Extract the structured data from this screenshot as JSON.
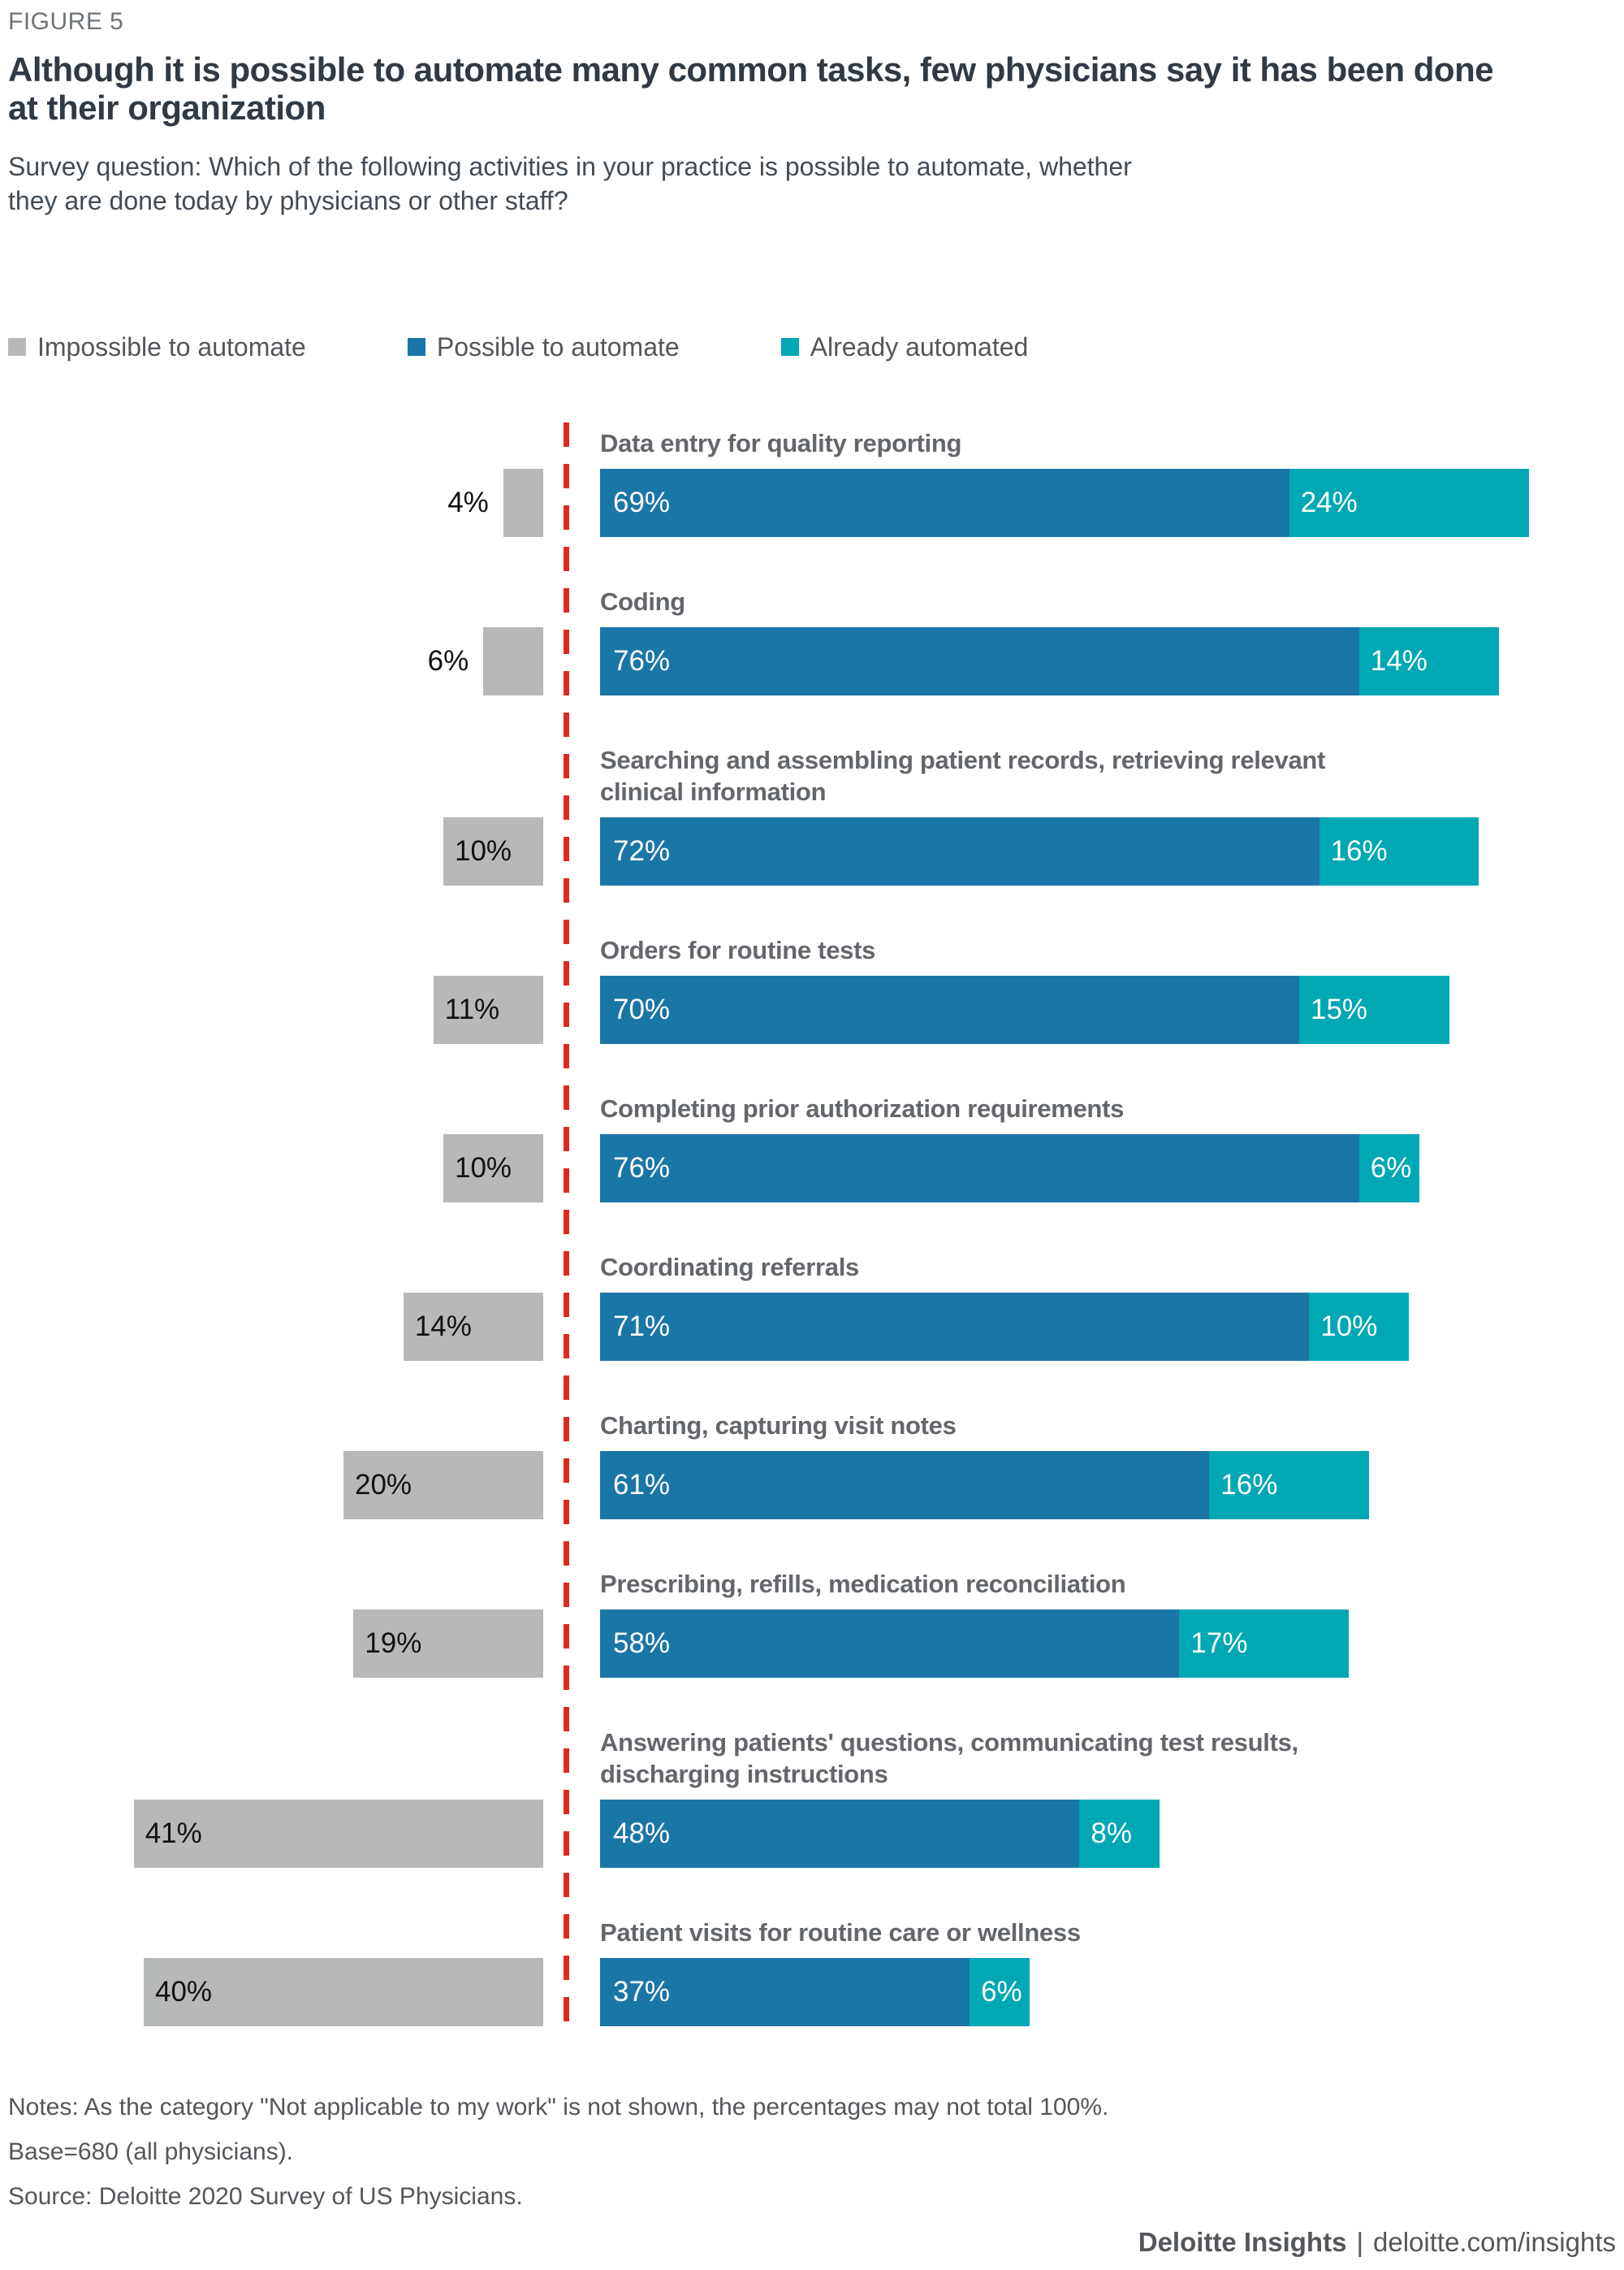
{
  "figure_label": "FIGURE 5",
  "title": "Although it is possible to automate many common tasks, few physicians say it has been done at their organization",
  "survey_question": "Survey question: Which of the following activities in your practice is possible to automate, whether they are done today by physicians or other staff?",
  "legend": {
    "items": [
      {
        "label": "Impossible to automate",
        "color": "#B7B9B9"
      },
      {
        "label": "Possible to automate",
        "color": "#1B76A8"
      },
      {
        "label": "Already automated",
        "color": "#00A7B5"
      }
    ]
  },
  "chart_data": {
    "type": "bar",
    "orientation": "horizontal",
    "value_unit": "%",
    "legend_position": "top",
    "axis_ticks": "none (values labeled on bars)",
    "divider_color": "#DF291E",
    "categories": [
      "Data entry for quality reporting",
      "Coding",
      "Searching and assembling patient records, retrieving relevant clinical information",
      "Orders for routine tests",
      "Completing prior authorization requirements",
      "Coordinating referrals",
      "Charting, capturing visit notes",
      "Prescribing, refills, medication reconciliation",
      "Answering patients' questions, communicating test results, discharging instructions",
      "Patient visits for routine care or wellness"
    ],
    "series": [
      {
        "name": "Impossible to automate",
        "color": "#B7B9B9",
        "side": "left-of-divider",
        "values": [
          4,
          6,
          10,
          11,
          10,
          14,
          20,
          19,
          41,
          40
        ]
      },
      {
        "name": "Possible to automate",
        "color": "#1B76A8",
        "side": "right-of-divider",
        "values": [
          69,
          76,
          72,
          70,
          76,
          71,
          61,
          58,
          48,
          37
        ]
      },
      {
        "name": "Already automated",
        "color": "#00A7B5",
        "side": "right-of-divider",
        "values": [
          24,
          14,
          16,
          15,
          6,
          10,
          16,
          17,
          8,
          6
        ]
      }
    ]
  },
  "notes": {
    "line1": "Notes: As the category \"Not applicable to my work\" is not shown, the percentages may not total 100%.",
    "line2": "Base=680 (all physicians).",
    "line3": "Source: Deloitte 2020 Survey of US Physicians."
  },
  "footer": {
    "brand": "Deloitte Insights",
    "separator": "|",
    "url": "deloitte.com/insights"
  }
}
